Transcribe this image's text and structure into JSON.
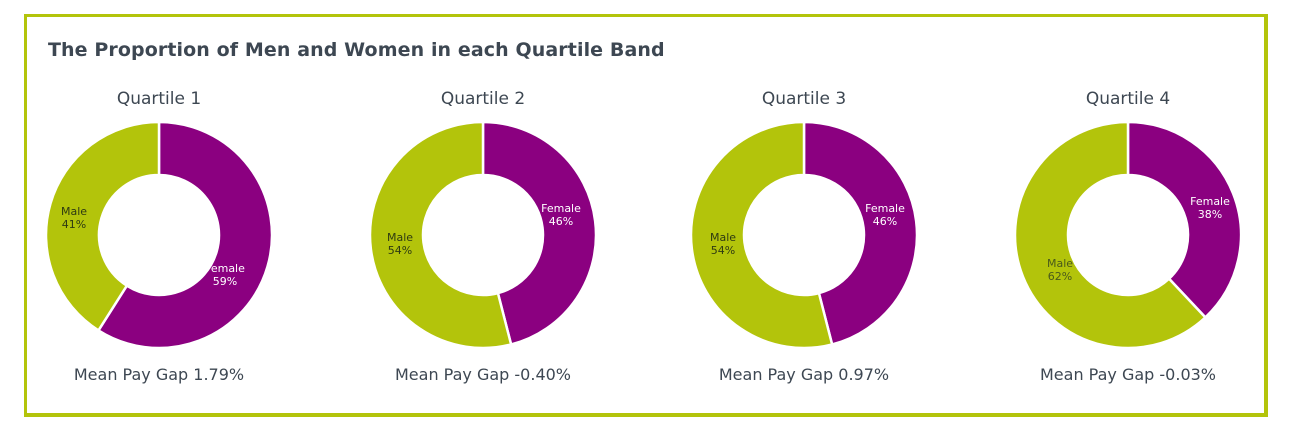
{
  "title": "The Proportion of Men and Women in each Quartile Band",
  "colors": {
    "female": "#8b0080",
    "male": "#b3c40b",
    "border": "#b3c40b",
    "text": "#3d4752"
  },
  "quartiles": [
    {
      "title": "Quartile 1",
      "female": {
        "label": "Female",
        "pct": "59%"
      },
      "male": {
        "label": "Male",
        "pct": "41%"
      },
      "mean_pay_gap": "Mean Pay Gap 1.79%"
    },
    {
      "title": "Quartile 2",
      "female": {
        "label": "Female",
        "pct": "46%"
      },
      "male": {
        "label": "Male",
        "pct": "54%"
      },
      "mean_pay_gap": "Mean Pay Gap -0.40%"
    },
    {
      "title": "Quartile 3",
      "female": {
        "label": "Female",
        "pct": "46%"
      },
      "male": {
        "label": "Male",
        "pct": "54%"
      },
      "mean_pay_gap": "Mean Pay Gap 0.97%"
    },
    {
      "title": "Quartile 4",
      "female": {
        "label": "Female",
        "pct": "38%"
      },
      "male": {
        "label": "Male",
        "pct": "62%"
      },
      "mean_pay_gap": "Mean Pay Gap -0.03%"
    }
  ],
  "chart_data": [
    {
      "type": "pie",
      "title": "Quartile 1",
      "categories": [
        "Female",
        "Male"
      ],
      "values": [
        59,
        41
      ],
      "annotation": "Mean Pay Gap 1.79%",
      "donut": true
    },
    {
      "type": "pie",
      "title": "Quartile 2",
      "categories": [
        "Female",
        "Male"
      ],
      "values": [
        46,
        54
      ],
      "annotation": "Mean Pay Gap -0.40%",
      "donut": true
    },
    {
      "type": "pie",
      "title": "Quartile 3",
      "categories": [
        "Female",
        "Male"
      ],
      "values": [
        46,
        54
      ],
      "annotation": "Mean Pay Gap 0.97%",
      "donut": true
    },
    {
      "type": "pie",
      "title": "Quartile 4",
      "categories": [
        "Female",
        "Male"
      ],
      "values": [
        38,
        62
      ],
      "annotation": "Mean Pay Gap -0.03%",
      "donut": true
    }
  ]
}
